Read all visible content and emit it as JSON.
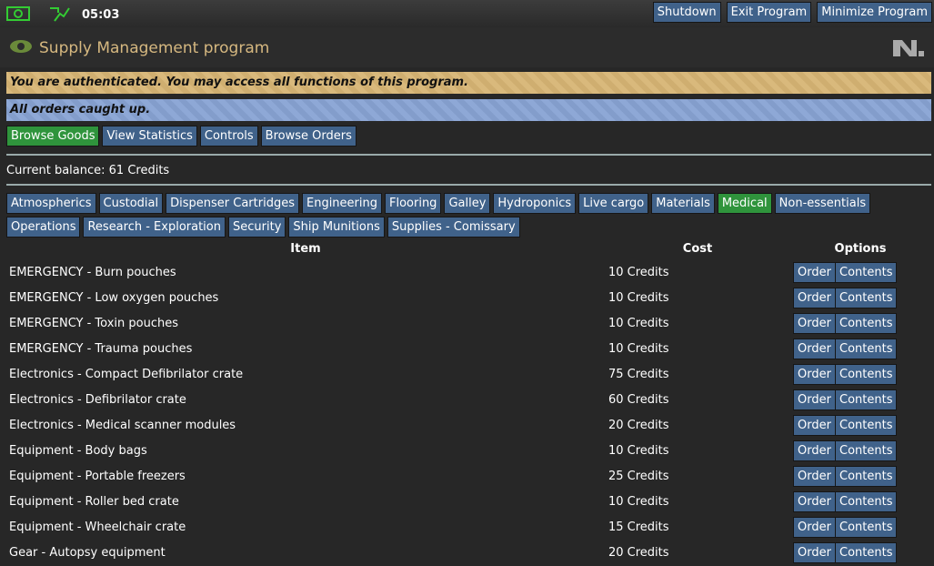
{
  "top_bar": {
    "time": "05:03",
    "buttons": [
      "Shutdown",
      "Exit Program",
      "Minimize Program"
    ]
  },
  "header": {
    "title": "Supply Management program"
  },
  "notices": [
    "You are authenticated. You may access all functions of this program.",
    "All orders caught up."
  ],
  "tabs": {
    "items": [
      "Browse Goods",
      "View Statistics",
      "Controls",
      "Browse Orders"
    ],
    "selected": 0
  },
  "balance": "Current balance: 61 Credits",
  "categories": {
    "items": [
      "Atmospherics",
      "Custodial",
      "Dispenser Cartridges",
      "Engineering",
      "Flooring",
      "Galley",
      "Hydroponics",
      "Live cargo",
      "Materials",
      "Medical",
      "Non-essentials",
      "Operations",
      "Research - Exploration",
      "Security",
      "Ship Munitions",
      "Supplies - Comissary"
    ],
    "selected": 9
  },
  "table": {
    "columns": [
      "Item",
      "Cost",
      "Options"
    ],
    "rows": [
      [
        "EMERGENCY - Burn pouches",
        "10 Credits",
        "Order",
        "Contents"
      ],
      [
        "EMERGENCY - Low oxygen pouches",
        "10 Credits",
        "Order",
        "Contents"
      ],
      [
        "EMERGENCY - Toxin pouches",
        "10 Credits",
        "Order",
        "Contents"
      ],
      [
        "EMERGENCY - Trauma pouches",
        "10 Credits",
        "Order",
        "Contents"
      ],
      [
        "Electronics - Compact Defibrilator crate",
        "75 Credits",
        "Order",
        "Contents"
      ],
      [
        "Electronics - Defibrilator crate",
        "60 Credits",
        "Order",
        "Contents"
      ],
      [
        "Electronics - Medical scanner modules",
        "20 Credits",
        "Order",
        "Contents"
      ],
      [
        "Equipment - Body bags",
        "10 Credits",
        "Order",
        "Contents"
      ],
      [
        "Equipment - Portable freezers",
        "25 Credits",
        "Order",
        "Contents"
      ],
      [
        "Equipment - Roller bed crate",
        "10 Credits",
        "Order",
        "Contents"
      ],
      [
        "Equipment - Wheelchair crate",
        "15 Credits",
        "Order",
        "Contents"
      ],
      [
        "Gear - Autopsy equipment",
        "20 Credits",
        "Order",
        "Contents"
      ]
    ]
  }
}
